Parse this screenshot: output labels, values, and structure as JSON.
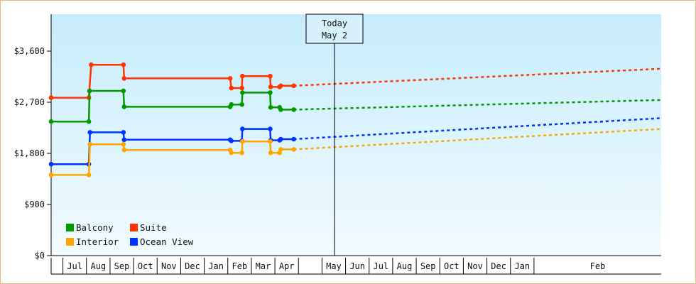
{
  "chart_data": {
    "type": "line",
    "today_marker": {
      "line1": "Today",
      "line2": "May 2",
      "x": 12.03
    },
    "y_ticks": [
      {
        "value": 0,
        "label": "$0"
      },
      {
        "value": 900,
        "label": "$900"
      },
      {
        "value": 1800,
        "label": "$1,800"
      },
      {
        "value": 2700,
        "label": "$2,700"
      },
      {
        "value": 3600,
        "label": "$3,600"
      }
    ],
    "ylim": [
      0,
      4250
    ],
    "xlim": [
      0,
      25.9
    ],
    "x_months": [
      {
        "label": "",
        "start": 0
      },
      {
        "label": "Jul",
        "start": 0.5
      },
      {
        "label": "Aug",
        "start": 1.5
      },
      {
        "label": "Sep",
        "start": 2.5
      },
      {
        "label": "Oct",
        "start": 3.5
      },
      {
        "label": "Nov",
        "start": 4.5
      },
      {
        "label": "Dec",
        "start": 5.5
      },
      {
        "label": "Jan",
        "start": 6.5
      },
      {
        "label": "Feb",
        "start": 7.5
      },
      {
        "label": "Mar",
        "start": 8.5
      },
      {
        "label": "Apr",
        "start": 9.5
      },
      {
        "label": "",
        "start": 10.5
      },
      {
        "label": "May",
        "start": 11.5
      },
      {
        "label": "Jun",
        "start": 12.5
      },
      {
        "label": "Jul",
        "start": 13.5
      },
      {
        "label": "Aug",
        "start": 14.5
      },
      {
        "label": "Sep",
        "start": 15.5
      },
      {
        "label": "Oct",
        "start": 16.5
      },
      {
        "label": "Nov",
        "start": 17.5
      },
      {
        "label": "Dec",
        "start": 18.5
      },
      {
        "label": "Jan",
        "start": 19.5
      },
      {
        "label": "Feb",
        "start": 20.5
      }
    ],
    "series": [
      {
        "name": "Suite",
        "color": "#ff3300",
        "points": [
          [
            0,
            2780
          ],
          [
            1.6,
            2780
          ],
          [
            1.7,
            3360
          ],
          [
            3.07,
            3360
          ],
          [
            3.1,
            3120
          ],
          [
            7.6,
            3120
          ],
          [
            7.65,
            2950
          ],
          [
            8.1,
            2950
          ],
          [
            8.12,
            3160
          ],
          [
            9.3,
            3160
          ],
          [
            9.32,
            2970
          ],
          [
            9.7,
            2970
          ],
          [
            9.75,
            2990
          ],
          [
            10.3,
            2990
          ]
        ],
        "projection": [
          [
            10.3,
            2990
          ],
          [
            25.9,
            3290
          ]
        ]
      },
      {
        "name": "Balcony",
        "color": "#009900",
        "points": [
          [
            0,
            2360
          ],
          [
            1.6,
            2360
          ],
          [
            1.63,
            2900
          ],
          [
            3.07,
            2900
          ],
          [
            3.1,
            2620
          ],
          [
            7.6,
            2620
          ],
          [
            7.65,
            2660
          ],
          [
            8.1,
            2660
          ],
          [
            8.12,
            2870
          ],
          [
            9.3,
            2870
          ],
          [
            9.32,
            2610
          ],
          [
            9.7,
            2610
          ],
          [
            9.75,
            2570
          ],
          [
            10.3,
            2570
          ]
        ],
        "projection": [
          [
            10.3,
            2570
          ],
          [
            25.9,
            2740
          ]
        ]
      },
      {
        "name": "Ocean View",
        "color": "#0033ff",
        "points": [
          [
            0,
            1610
          ],
          [
            1.6,
            1610
          ],
          [
            1.65,
            2170
          ],
          [
            3.07,
            2170
          ],
          [
            3.1,
            2040
          ],
          [
            7.6,
            2040
          ],
          [
            7.65,
            2020
          ],
          [
            8.1,
            2020
          ],
          [
            8.12,
            2230
          ],
          [
            9.3,
            2230
          ],
          [
            9.32,
            2030
          ],
          [
            9.7,
            2030
          ],
          [
            9.75,
            2050
          ],
          [
            10.3,
            2050
          ]
        ],
        "projection": [
          [
            10.3,
            2050
          ],
          [
            25.9,
            2420
          ]
        ]
      },
      {
        "name": "Interior",
        "color": "#ffa500",
        "points": [
          [
            0,
            1420
          ],
          [
            1.6,
            1420
          ],
          [
            1.65,
            1960
          ],
          [
            3.07,
            1960
          ],
          [
            3.1,
            1860
          ],
          [
            7.6,
            1860
          ],
          [
            7.65,
            1810
          ],
          [
            8.1,
            1810
          ],
          [
            8.12,
            2010
          ],
          [
            9.3,
            2010
          ],
          [
            9.32,
            1810
          ],
          [
            9.7,
            1810
          ],
          [
            9.75,
            1870
          ],
          [
            10.3,
            1870
          ]
        ],
        "projection": [
          [
            10.3,
            1870
          ],
          [
            25.9,
            2230
          ]
        ]
      }
    ],
    "legend": [
      {
        "name": "Balcony",
        "color": "#009900"
      },
      {
        "name": "Suite",
        "color": "#ff3300"
      },
      {
        "name": "Interior",
        "color": "#ffa500"
      },
      {
        "name": "Ocean View",
        "color": "#0033ff"
      }
    ],
    "legend_placement": "bottom-left",
    "grid": false
  }
}
